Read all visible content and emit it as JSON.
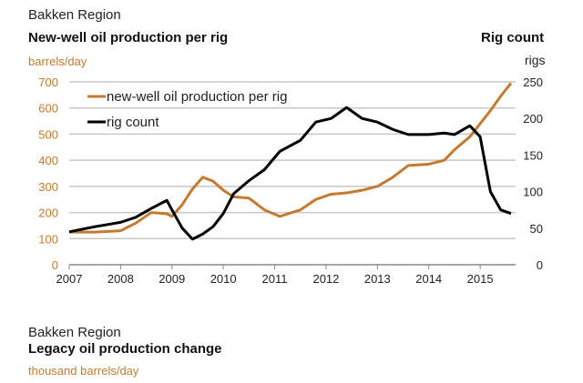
{
  "chart_data": {
    "type": "line",
    "region": "Bakken Region",
    "title": "New-well oil production per rig",
    "right_title": "Rig count",
    "ylabel": "barrels/day",
    "y2label": "rigs",
    "ylim": [
      0,
      700
    ],
    "y2lim": [
      0,
      250
    ],
    "yticks": [
      "0",
      "100",
      "200",
      "300",
      "400",
      "500",
      "600",
      "700"
    ],
    "y2ticks": [
      "0",
      "50",
      "100",
      "150",
      "200",
      "250"
    ],
    "xticks": [
      "2007",
      "2008",
      "2009",
      "2010",
      "2011",
      "2012",
      "2013",
      "2014",
      "2015"
    ],
    "grid": true,
    "legend": "top-left",
    "colors": {
      "production": "#c47a2f",
      "rigs": "#000000"
    },
    "x": [
      2007.0,
      2007.5,
      2008.0,
      2008.3,
      2008.6,
      2008.9,
      2009.0,
      2009.2,
      2009.4,
      2009.6,
      2009.8,
      2010.0,
      2010.2,
      2010.5,
      2010.8,
      2011.1,
      2011.5,
      2011.8,
      2012.1,
      2012.4,
      2012.7,
      2013.0,
      2013.3,
      2013.6,
      2014.0,
      2014.3,
      2014.5,
      2014.8,
      2015.0,
      2015.2,
      2015.4,
      2015.6
    ],
    "series": [
      {
        "name": "new-well oil production per rig",
        "axis": "left",
        "values": [
          125,
          125,
          130,
          160,
          200,
          195,
          185,
          230,
          290,
          335,
          320,
          285,
          260,
          255,
          210,
          185,
          210,
          250,
          270,
          275,
          285,
          300,
          335,
          380,
          385,
          400,
          440,
          490,
          540,
          590,
          645,
          695
        ]
      },
      {
        "name": "rig count",
        "axis": "right",
        "values": [
          45,
          52,
          58,
          65,
          77,
          88,
          75,
          50,
          35,
          42,
          52,
          70,
          97,
          115,
          130,
          155,
          170,
          195,
          200,
          215,
          200,
          195,
          185,
          178,
          178,
          180,
          178,
          190,
          175,
          100,
          75,
          70
        ]
      }
    ]
  },
  "lower": {
    "region": "Bakken Region",
    "title": "Legacy oil production change",
    "unit": "thousand barrels/day"
  }
}
